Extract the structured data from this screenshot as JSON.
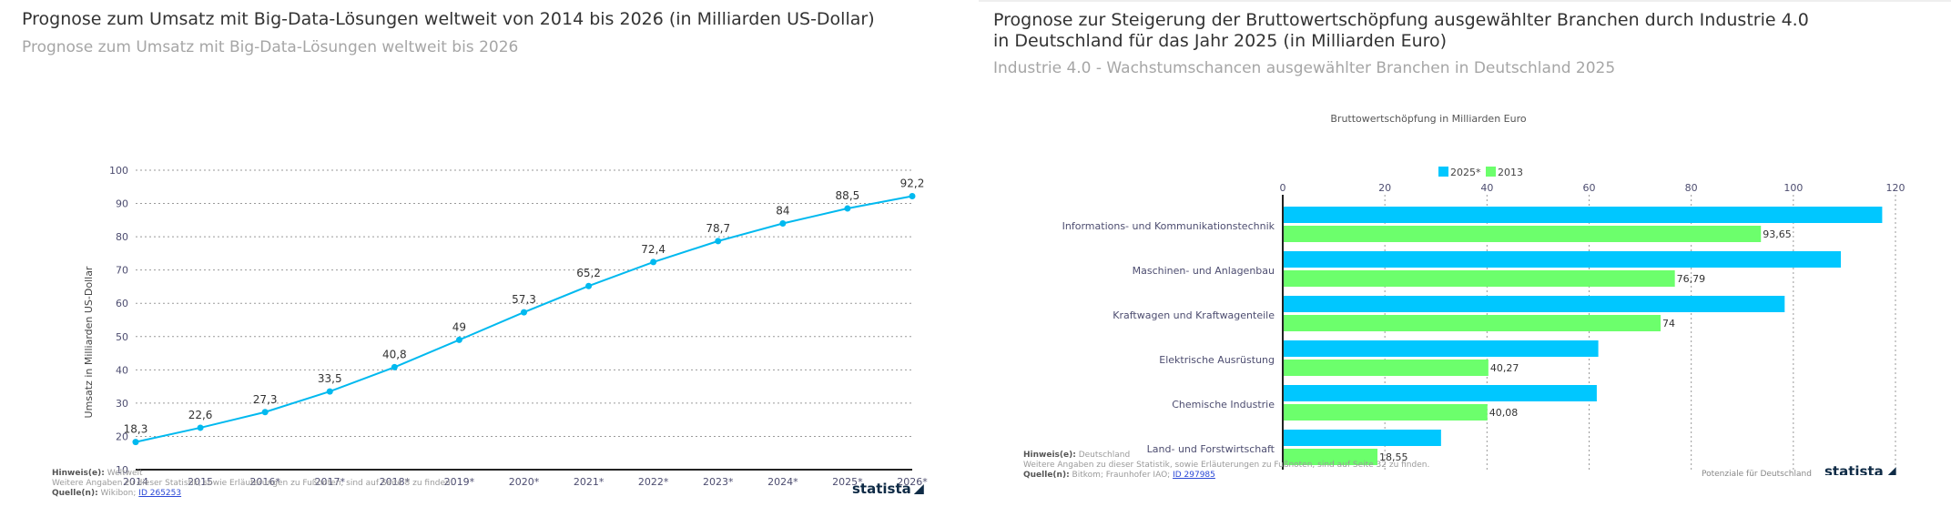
{
  "left": {
    "title": "Prognose zum Umsatz mit Big-Data-Lösungen weltweit von 2014 bis 2026 (in Milliarden US-Dollar)",
    "subtitle": "Prognose zum Umsatz mit Big-Data-Lösungen weltweit bis 2026",
    "note_label": "Hinweis(e):",
    "note_value": "Weltweit",
    "more_info": "Weitere Angaben zu dieser Statistik, sowie Erläuterungen zu Fußnoten, sind auf Seite 8 zu finden.",
    "source_label": "Quelle(n):",
    "source_value": "Wikibon;",
    "source_id": "ID 265253",
    "brand": "statista"
  },
  "right": {
    "title": "Prognose zur Steigerung der Bruttowertschöpfung ausgewählter Branchen durch Industrie 4.0 in Deutschland für das Jahr 2025 (in Milliarden Euro)",
    "subtitle": "Industrie 4.0 - Wachstumschancen ausgewählter Branchen in Deutschland 2025",
    "note_label": "Hinweis(e):",
    "note_value": "Deutschland",
    "more_info": "Weitere Angaben zu dieser Statistik, sowie Erläuterungen zu Fußnoten, sind auf Seite 32 zu finden.",
    "source_label": "Quelle(n):",
    "source_value": "Bitkom; Fraunhofer IAO;",
    "source_id": "ID 297985",
    "publisher": "Potenziale für Deutschland",
    "brand": "statista"
  },
  "colors": {
    "line": "#00b9ef",
    "bar_2025": "#00c7ff",
    "bar_2013": "#6cff6c",
    "axis": "#222222",
    "grid": "#9a9a9a"
  },
  "chart_data": [
    {
      "type": "line",
      "title": "Prognose zum Umsatz mit Big-Data-Lösungen weltweit von 2014 bis 2026 (in Milliarden US-Dollar)",
      "xlabel": "",
      "ylabel": "Umsatz in Milliarden US-Dollar",
      "categories": [
        "2014",
        "2015",
        "2016*",
        "2017*",
        "2018*",
        "2019*",
        "2020*",
        "2021*",
        "2022*",
        "2023*",
        "2024*",
        "2025*",
        "2026*"
      ],
      "values": [
        18.3,
        22.6,
        27.3,
        33.5,
        40.8,
        49,
        57.3,
        65.2,
        72.4,
        78.7,
        84,
        88.5,
        92.2
      ],
      "data_labels": [
        "18,3",
        "22,6",
        "27,3",
        "33,5",
        "40,8",
        "49",
        "57,3",
        "65,2",
        "72,4",
        "78,7",
        "84",
        "88,5",
        "92,2"
      ],
      "ylim": [
        10,
        100
      ],
      "yticks": [
        10,
        20,
        30,
        40,
        50,
        60,
        70,
        80,
        90,
        100
      ],
      "grid": true,
      "legend": "none"
    },
    {
      "type": "bar",
      "orientation": "horizontal",
      "title": "Prognose zur Steigerung der Bruttowertschöpfung ausgewählter Branchen durch Industrie 4.0 in Deutschland für das Jahr 2025 (in Milliarden Euro)",
      "xlabel": "Bruttowertschöpfung in Milliarden Euro",
      "categories": [
        "Informations- und Kommunikationstechnik",
        "Maschinen- und Anlagenbau",
        "Kraftwagen und Kraftwagenteile",
        "Elektrische Ausrüstung",
        "Chemische Industrie",
        "Land- und Forstwirtschaft"
      ],
      "series": [
        {
          "name": "2025*",
          "values": [
            117.4,
            109.3,
            98.3,
            61.8,
            61.5,
            31
          ]
        },
        {
          "name": "2013",
          "values": [
            93.65,
            76.79,
            74,
            40.27,
            40.08,
            18.55
          ],
          "data_labels": [
            "93,65",
            "76,79",
            "74",
            "40,27",
            "40,08",
            "18,55"
          ]
        }
      ],
      "xlim": [
        0,
        120
      ],
      "xticks": [
        0,
        20,
        40,
        60,
        80,
        100,
        120
      ],
      "grid": true,
      "legend": "top-center"
    }
  ]
}
